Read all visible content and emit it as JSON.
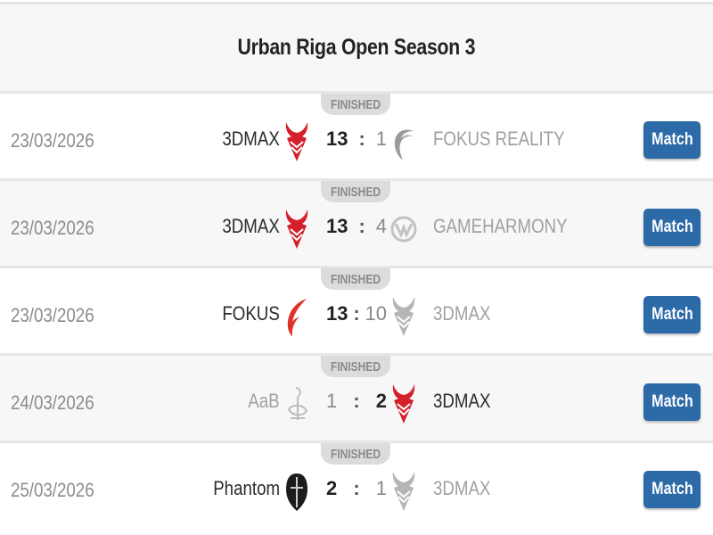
{
  "title": "Urban Riga Open Season 3",
  "colors": {
    "button": "#2d6aa8",
    "devil_red": "#d4202a",
    "header_bg": "#f7f7f7"
  },
  "matches": [
    {
      "status": "FINISHED",
      "date": "23/03/2026",
      "team1": "3DMAX",
      "team1_logo": "red-devil-logo",
      "score1": "13",
      "separator": ":",
      "score2": "1",
      "team2": "FOKUS REALITY",
      "team2_logo": "fokus-f-logo-gray",
      "winner": 1,
      "button": "Match"
    },
    {
      "status": "FINISHED",
      "date": "23/03/2026",
      "team1": "3DMAX",
      "team1_logo": "red-devil-logo",
      "score1": "13",
      "separator": ":",
      "score2": "4",
      "team2": "GAMEHARMONY",
      "team2_logo": "gameharmony-logo-gray",
      "winner": 1,
      "button": "Match"
    },
    {
      "status": "FINISHED",
      "date": "23/03/2026",
      "team1": "FOKUS",
      "team1_logo": "fokus-red-logo",
      "score1": "13",
      "separator": ":",
      "score2": "10",
      "team2": "3DMAX",
      "team2_logo": "devil-logo-gray",
      "winner": 1,
      "button": "Match"
    },
    {
      "status": "FINISHED",
      "date": "24/03/2026",
      "team1": "AaB",
      "team1_logo": "aab-logo-gray",
      "score1": "1",
      "separator": ":",
      "score2": "2",
      "team2": "3DMAX",
      "team2_logo": "red-devil-logo",
      "winner": 2,
      "button": "Match"
    },
    {
      "status": "FINISHED",
      "date": "25/03/2026",
      "team1": "Phantom",
      "team1_logo": "phantom-helmet-logo",
      "score1": "2",
      "separator": ":",
      "score2": "1",
      "team2": "3DMAX",
      "team2_logo": "devil-logo-gray",
      "winner": 1,
      "button": "Match"
    }
  ]
}
